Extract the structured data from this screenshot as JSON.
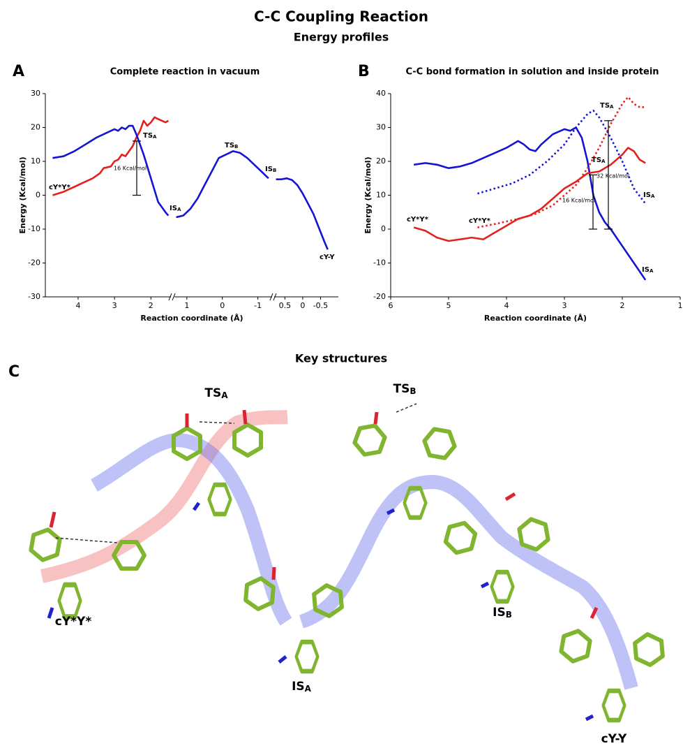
{
  "title": "C-C Coupling Reaction",
  "subtitle": "Energy profiles",
  "chart_data": [
    {
      "type": "line",
      "panel": "A",
      "title": "Complete reaction in vacuum",
      "xlabel": "Reaction coordinate (Å)",
      "ylabel": "Energy (Kcal/mol)",
      "ylim": [
        -30,
        30
      ],
      "yticks": [
        -30,
        -20,
        -10,
        0,
        10,
        20,
        30
      ],
      "segments": [
        {
          "xlim": [
            4.9,
            1.45
          ],
          "xticks": [
            4,
            3,
            2
          ],
          "series": [
            {
              "color": "#e3211c",
              "style": "solid",
              "x": [
                4.7,
                4.4,
                4.0,
                3.8,
                3.6,
                3.4,
                3.3,
                3.1,
                3.0,
                2.9,
                2.8,
                2.7,
                2.6,
                2.5,
                2.4,
                2.3,
                2.2,
                2.1,
                2.0,
                1.9,
                1.8,
                1.7,
                1.6,
                1.52
              ],
              "values": [
                0,
                1,
                3,
                4,
                5,
                6.5,
                8,
                8.5,
                10,
                10.5,
                12,
                11.5,
                13,
                14.5,
                17,
                19,
                22,
                20.5,
                21.5,
                23,
                22.5,
                22,
                21.5,
                22
              ]
            },
            {
              "color": "#1414d4",
              "style": "solid",
              "x": [
                4.7,
                4.4,
                4.1,
                3.8,
                3.5,
                3.3,
                3.1,
                3.0,
                2.9,
                2.8,
                2.7,
                2.6,
                2.5,
                2.4,
                2.3,
                2.2,
                2.0,
                1.8,
                1.6,
                1.52
              ],
              "values": [
                11,
                11.5,
                13,
                15,
                17,
                18,
                19,
                19.5,
                19,
                20,
                19.5,
                20.5,
                20.5,
                18,
                15,
                12,
                5,
                -2,
                -5,
                -6
              ]
            }
          ]
        },
        {
          "xlim": [
            1.35,
            -1.4
          ],
          "xticks": [
            1,
            0,
            -1
          ],
          "series": [
            {
              "color": "#1414d4",
              "style": "solid",
              "x": [
                1.3,
                1.1,
                0.9,
                0.7,
                0.5,
                0.3,
                0.1,
                -0.1,
                -0.3,
                -0.5,
                -0.7,
                -0.9,
                -1.1,
                -1.3
              ],
              "values": [
                -6.5,
                -6,
                -4,
                -1,
                3,
                7,
                11,
                12,
                13,
                12.5,
                11,
                9,
                7,
                5
              ]
            }
          ]
        },
        {
          "xlim": [
            0.8,
            -1.0
          ],
          "xticks": [
            0.5,
            0,
            -0.5
          ],
          "series": [
            {
              "color": "#1414d4",
              "style": "solid",
              "x": [
                0.75,
                0.6,
                0.45,
                0.3,
                0.15,
                0.0,
                -0.15,
                -0.3,
                -0.45,
                -0.6,
                -0.7
              ],
              "values": [
                4.7,
                4.7,
                5,
                4.5,
                3,
                0.5,
                -2.5,
                -5.5,
                -9.5,
                -13.5,
                -16
              ]
            }
          ]
        }
      ],
      "barriers": [
        {
          "value": 16,
          "label": "16 Kcal/mol"
        }
      ],
      "annotations": [
        {
          "text": "cY*Y*"
        },
        {
          "text": "TS",
          "sub": "A"
        },
        {
          "text": "TS",
          "sub": "B"
        },
        {
          "text": "IS",
          "sub": "A"
        },
        {
          "text": "IS",
          "sub": "B"
        },
        {
          "text": "cY-Y"
        }
      ]
    },
    {
      "type": "line",
      "panel": "B",
      "title": "C-C bond formation in solution and inside protein",
      "xlabel": "Reaction coordinate (Å)",
      "ylabel": "Energy (Kcal/mol)",
      "xlim": [
        6,
        1
      ],
      "xticks": [
        6,
        5,
        4,
        3,
        2,
        1
      ],
      "ylim": [
        -20,
        40
      ],
      "yticks": [
        -20,
        -10,
        0,
        10,
        20,
        30,
        40
      ],
      "series": [
        {
          "color": "#1414d4",
          "style": "solid",
          "x": [
            5.6,
            5.4,
            5.2,
            5.0,
            4.8,
            4.6,
            4.4,
            4.2,
            4.0,
            3.8,
            3.7,
            3.6,
            3.5,
            3.4,
            3.2,
            3.0,
            2.9,
            2.8,
            2.7,
            2.6,
            2.5,
            2.4,
            2.3,
            2.2,
            2.0,
            1.8,
            1.6
          ],
          "values": [
            19,
            19.5,
            19,
            18,
            18.5,
            19.5,
            21,
            22.5,
            24,
            26,
            25,
            23.5,
            23,
            25,
            28,
            29.5,
            29,
            30,
            27,
            20,
            10,
            5,
            2,
            0,
            -5,
            -10,
            -15
          ]
        },
        {
          "color": "#e3211c",
          "style": "solid",
          "x": [
            5.6,
            5.4,
            5.2,
            5.0,
            4.8,
            4.6,
            4.4,
            4.2,
            4.0,
            3.8,
            3.6,
            3.4,
            3.2,
            3.0,
            2.8,
            2.6,
            2.4,
            2.2,
            2.0,
            1.9,
            1.8,
            1.7,
            1.6
          ],
          "values": [
            0.5,
            -0.5,
            -2.5,
            -3.5,
            -3,
            -2.5,
            -3,
            -1,
            1,
            3,
            4,
            6,
            9,
            12,
            14,
            16.5,
            17,
            19,
            22,
            24,
            23,
            20.5,
            19.5
          ]
        },
        {
          "color": "#1414d4",
          "style": "dotted",
          "x": [
            4.5,
            4.2,
            3.9,
            3.6,
            3.3,
            3.0,
            2.8,
            2.6,
            2.5,
            2.4,
            2.2,
            2.0,
            1.8,
            1.6
          ],
          "values": [
            10.5,
            12,
            13.5,
            16,
            20,
            25,
            30,
            34,
            35,
            33,
            27,
            20,
            12,
            7.5
          ]
        },
        {
          "color": "#e3211c",
          "style": "dotted",
          "x": [
            4.5,
            4.2,
            3.8,
            3.5,
            3.2,
            3.0,
            2.8,
            2.6,
            2.4,
            2.2,
            2.0,
            1.9,
            1.8,
            1.7,
            1.6
          ],
          "values": [
            0.5,
            1.5,
            3,
            4.5,
            7,
            10,
            13,
            18,
            24,
            31,
            37,
            39,
            37,
            36,
            36
          ]
        }
      ],
      "barriers": [
        {
          "value": 16,
          "label": "16 Kcal/mol"
        },
        {
          "value": 32,
          "label": "32 Kcal/mol"
        }
      ],
      "annotations": [
        {
          "text": "cY*Y*"
        },
        {
          "text": "cY*Y*"
        },
        {
          "text": "TS",
          "sub": "A"
        },
        {
          "text": "TS",
          "sub": "A"
        },
        {
          "text": "IS",
          "sub": "A"
        },
        {
          "text": "IS",
          "sub": "A"
        }
      ]
    }
  ],
  "structures": {
    "panel": "C",
    "title": "Key structures",
    "labels": [
      {
        "text": "cY*Y*"
      },
      {
        "text": "TS",
        "sub": "A"
      },
      {
        "text": "IS",
        "sub": "A"
      },
      {
        "text": "TS",
        "sub": "B"
      },
      {
        "text": "IS",
        "sub": "B"
      },
      {
        "text": "cY-Y"
      }
    ]
  }
}
